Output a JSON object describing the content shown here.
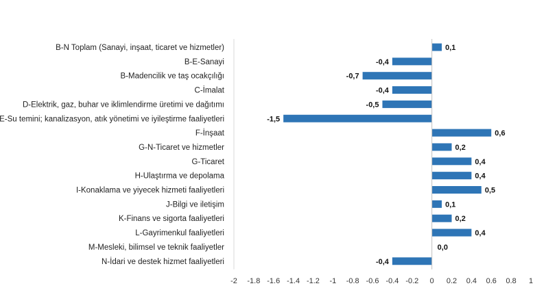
{
  "chart_data": {
    "type": "bar",
    "orientation": "horizontal",
    "title": "",
    "xlabel": "",
    "ylabel": "",
    "xlim": [
      -2,
      1
    ],
    "x_ticks": [
      "-2",
      "-1.8",
      "-1.6",
      "-1.4",
      "-1.2",
      "-1",
      "-0.8",
      "-0.6",
      "-0.4",
      "-0.2",
      "0",
      "0.2",
      "0.4",
      "0.6",
      "0.8",
      "1"
    ],
    "grid": false,
    "bar_color": "#2E75B6",
    "categories": [
      "B-N Toplam (Sanayi, inşaat, ticaret ve hizmetler)",
      "B-E-Sanayi",
      "B-Madencilik ve taş ocakçılığı",
      "C-İmalat",
      "D-Elektrik, gaz, buhar ve iklimlendirme üretimi ve dağıtımı",
      "E-Su temini; kanalizasyon, atık yönetimi ve iyileştirme faaliyetleri",
      "F-İnşaat",
      "G-N-Ticaret ve hizmetler",
      "G-Ticaret",
      "H-Ulaştırma ve depolama",
      "I-Konaklama ve yiyecek hizmeti faaliyetleri",
      "J-Bilgi ve iletişim",
      "K-Finans ve sigorta faaliyetleri",
      "L-Gayrimenkul faaliyetleri",
      "M-Mesleki, bilimsel ve teknik faaliyetler",
      "N-İdari ve destek hizmet faaliyetleri"
    ],
    "values": [
      0.1,
      -0.4,
      -0.7,
      -0.4,
      -0.5,
      -1.5,
      0.6,
      0.2,
      0.4,
      0.4,
      0.5,
      0.1,
      0.2,
      0.4,
      0.0,
      -0.4
    ],
    "value_labels": [
      "0,1",
      "-0,4",
      "-0,7",
      "-0,4",
      "-0,5",
      "-1,5",
      "0,6",
      "0,2",
      "0,4",
      "0,4",
      "0,5",
      "0,1",
      "0,2",
      "0,4",
      "0,0",
      "-0,4"
    ]
  }
}
